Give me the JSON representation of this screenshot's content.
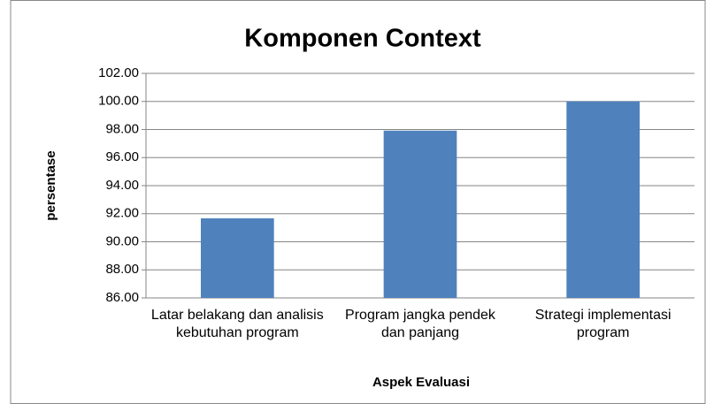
{
  "chart_data": {
    "type": "bar",
    "title": "Komponen Context",
    "x_label": "Aspek Evaluasi",
    "y_label": "persentase",
    "categories": [
      "Latar belakang dan analisis kebutuhan program",
      "Program jangka pendek dan panjang",
      "Strategi implementasi program"
    ],
    "values": [
      91.67,
      97.92,
      100
    ],
    "color": "#4f81bd",
    "ylim": [
      86,
      102
    ],
    "yticks": [
      {
        "value": 86,
        "label": "86.00"
      },
      {
        "value": 88,
        "label": "88.00"
      },
      {
        "value": 90,
        "label": "90.00"
      },
      {
        "value": 92,
        "label": "92.00"
      },
      {
        "value": 94,
        "label": "94.00"
      },
      {
        "value": 96,
        "label": "96.00"
      },
      {
        "value": 98,
        "label": "98.00"
      },
      {
        "value": 100,
        "label": "100.00"
      },
      {
        "value": 102,
        "label": "102.00"
      }
    ],
    "grid": true
  }
}
